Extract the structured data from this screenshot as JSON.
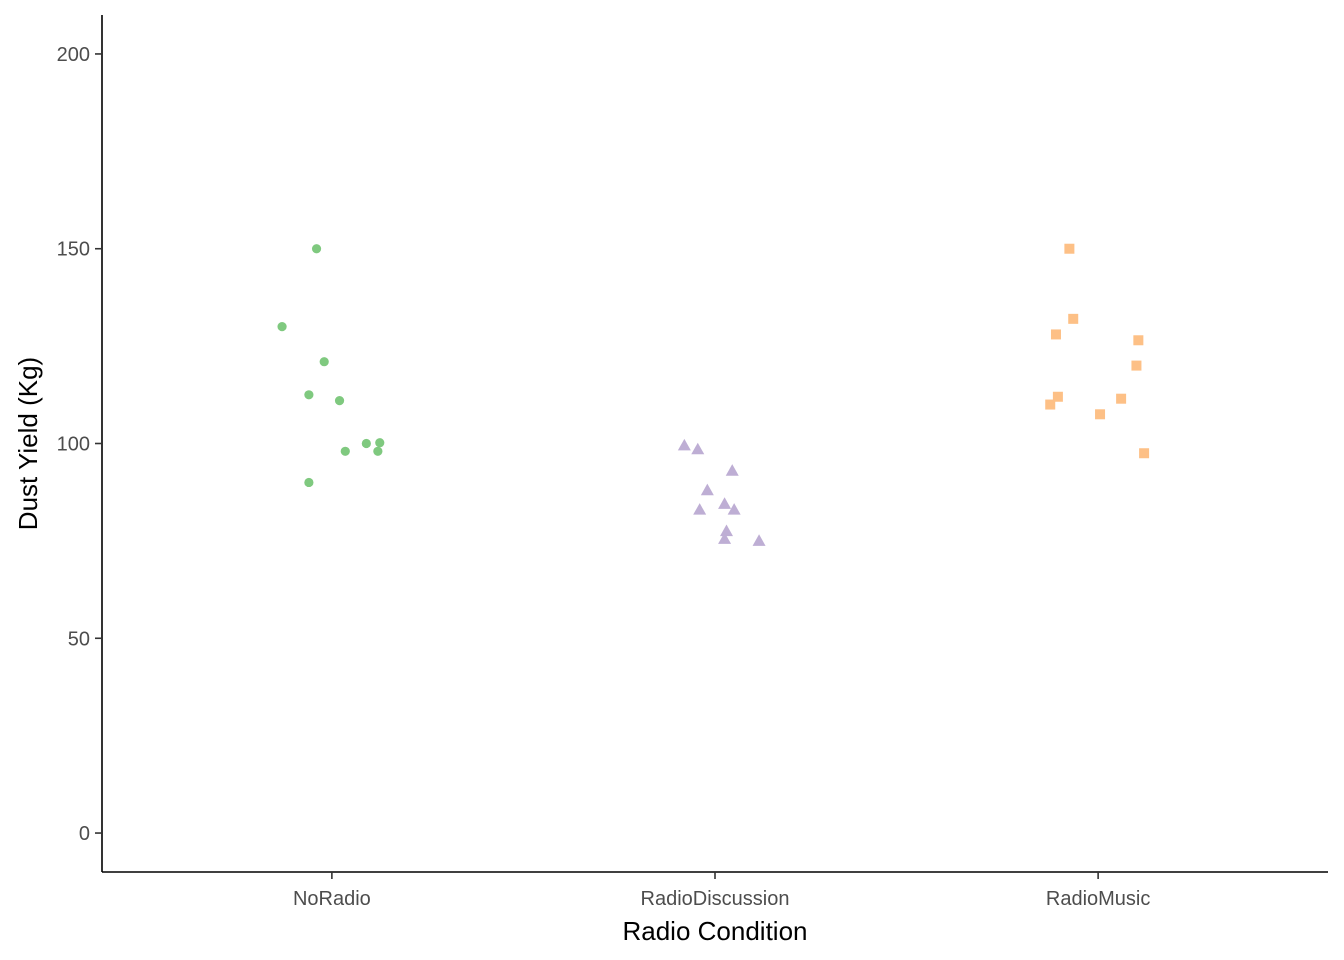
{
  "chart_data": {
    "type": "scatter",
    "title": "",
    "xlabel": "Radio Condition",
    "ylabel": "Dust Yield (Kg)",
    "categories": [
      "NoRadio",
      "RadioDiscussion",
      "RadioMusic"
    ],
    "ylim": [
      -10,
      210
    ],
    "yticks": [
      0,
      50,
      100,
      150,
      200
    ],
    "grid": false,
    "legend": "none",
    "series": [
      {
        "category": "NoRadio",
        "shape": "circle",
        "color": "#7fc97f",
        "points": [
          {
            "jitter": -0.04,
            "y": 150
          },
          {
            "jitter": -0.13,
            "y": 130
          },
          {
            "jitter": -0.02,
            "y": 121
          },
          {
            "jitter": -0.06,
            "y": 112.5
          },
          {
            "jitter": 0.02,
            "y": 111
          },
          {
            "jitter": 0.09,
            "y": 100
          },
          {
            "jitter": 0.125,
            "y": 100.2
          },
          {
            "jitter": 0.035,
            "y": 98
          },
          {
            "jitter": 0.12,
            "y": 98
          },
          {
            "jitter": -0.06,
            "y": 90
          }
        ]
      },
      {
        "category": "RadioDiscussion",
        "shape": "triangle",
        "color": "#beaed4",
        "points": [
          {
            "jitter": -0.08,
            "y": 99.5
          },
          {
            "jitter": -0.045,
            "y": 98.5
          },
          {
            "jitter": 0.045,
            "y": 93
          },
          {
            "jitter": -0.02,
            "y": 88
          },
          {
            "jitter": 0.025,
            "y": 84.5
          },
          {
            "jitter": -0.04,
            "y": 83
          },
          {
            "jitter": 0.05,
            "y": 83
          },
          {
            "jitter": 0.03,
            "y": 77.5
          },
          {
            "jitter": 0.025,
            "y": 75.5
          },
          {
            "jitter": 0.115,
            "y": 75
          }
        ]
      },
      {
        "category": "RadioMusic",
        "shape": "square",
        "color": "#fdc086",
        "points": [
          {
            "jitter": -0.075,
            "y": 150
          },
          {
            "jitter": -0.065,
            "y": 132
          },
          {
            "jitter": -0.11,
            "y": 128
          },
          {
            "jitter": 0.105,
            "y": 126.5
          },
          {
            "jitter": 0.1,
            "y": 120
          },
          {
            "jitter": -0.105,
            "y": 112
          },
          {
            "jitter": -0.125,
            "y": 110
          },
          {
            "jitter": 0.06,
            "y": 111.5
          },
          {
            "jitter": 0.005,
            "y": 107.5
          },
          {
            "jitter": 0.12,
            "y": 97.5
          }
        ]
      }
    ]
  }
}
